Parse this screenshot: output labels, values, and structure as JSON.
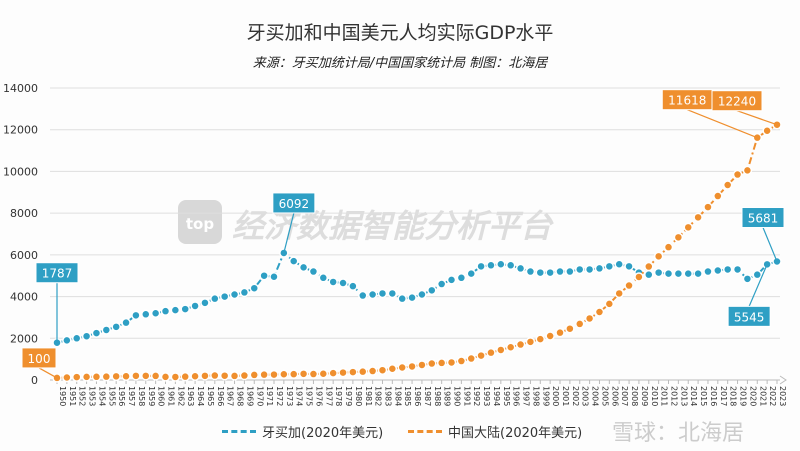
{
  "title": "牙买加和中国美元人均实际GDP水平",
  "subtitle": "来源：牙买加统计局/中国国家统计局 制图：北海居",
  "watermark": {
    "logo": "top",
    "text": "经济数据智能分析平台",
    "corner": "雪球：北海居"
  },
  "chart_data": {
    "type": "line",
    "title": "牙买加和中国美元人均实际GDP水平",
    "xlabel": "",
    "ylabel": "",
    "ylim": [
      0,
      14000
    ],
    "yticks": [
      0,
      2000,
      4000,
      6000,
      8000,
      10000,
      12000,
      14000
    ],
    "grid": true,
    "legend": "bottom",
    "x": [
      1950,
      1951,
      1952,
      1953,
      1954,
      1955,
      1956,
      1957,
      1958,
      1959,
      1960,
      1961,
      1962,
      1963,
      1964,
      1965,
      1966,
      1967,
      1968,
      1969,
      1970,
      1971,
      1972,
      1973,
      1974,
      1975,
      1976,
      1977,
      1978,
      1979,
      1980,
      1981,
      1982,
      1983,
      1984,
      1985,
      1986,
      1987,
      1988,
      1989,
      1990,
      1991,
      1992,
      1993,
      1994,
      1995,
      1996,
      1997,
      1998,
      1999,
      2000,
      2001,
      2002,
      2003,
      2004,
      2005,
      2006,
      2007,
      2008,
      2009,
      2010,
      2011,
      2012,
      2013,
      2014,
      2015,
      2016,
      2017,
      2018,
      2019,
      2020,
      2021,
      2022,
      2023
    ],
    "series": [
      {
        "name": "牙买加(2020年美元)",
        "color": "#2e9fc4",
        "values": [
          1787,
          1900,
          2000,
          2100,
          2250,
          2400,
          2550,
          2750,
          3100,
          3150,
          3200,
          3300,
          3350,
          3400,
          3550,
          3700,
          3900,
          4000,
          4100,
          4200,
          4400,
          5000,
          4950,
          6092,
          5700,
          5400,
          5200,
          4900,
          4700,
          4650,
          4500,
          4050,
          4100,
          4150,
          4150,
          3900,
          3950,
          4100,
          4300,
          4600,
          4800,
          4900,
          5100,
          5450,
          5500,
          5550,
          5500,
          5350,
          5200,
          5150,
          5150,
          5200,
          5200,
          5300,
          5300,
          5350,
          5450,
          5550,
          5450,
          5150,
          5050,
          5150,
          5100,
          5100,
          5100,
          5100,
          5200,
          5250,
          5300,
          5300,
          4850,
          5050,
          5545,
          5681
        ]
      },
      {
        "name": "中国大陆(2020年美元)",
        "color": "#ef8f2e",
        "values": [
          100,
          120,
          140,
          150,
          155,
          160,
          175,
          180,
          200,
          200,
          195,
          150,
          145,
          160,
          180,
          200,
          215,
          205,
          195,
          215,
          245,
          255,
          260,
          275,
          280,
          295,
          285,
          300,
          330,
          355,
          380,
          400,
          430,
          470,
          540,
          600,
          650,
          720,
          790,
          820,
          840,
          910,
          1030,
          1170,
          1310,
          1440,
          1570,
          1700,
          1830,
          1960,
          2110,
          2270,
          2460,
          2690,
          2950,
          3260,
          3650,
          4150,
          4530,
          4940,
          5440,
          5930,
          6370,
          6840,
          7320,
          7800,
          8290,
          8820,
          9350,
          9850,
          10050,
          11618,
          11950,
          12240
        ]
      }
    ],
    "annotations": [
      {
        "series": 0,
        "year": 1950,
        "label": "1787"
      },
      {
        "series": 0,
        "year": 1973,
        "label": "6092"
      },
      {
        "series": 0,
        "year": 2023,
        "label": "5681"
      },
      {
        "series": 0,
        "year": 2022,
        "label": "5545"
      },
      {
        "series": 1,
        "year": 1950,
        "label": "100"
      },
      {
        "series": 1,
        "year": 2021,
        "label": "11618"
      },
      {
        "series": 1,
        "year": 2023,
        "label": "12240"
      }
    ]
  }
}
